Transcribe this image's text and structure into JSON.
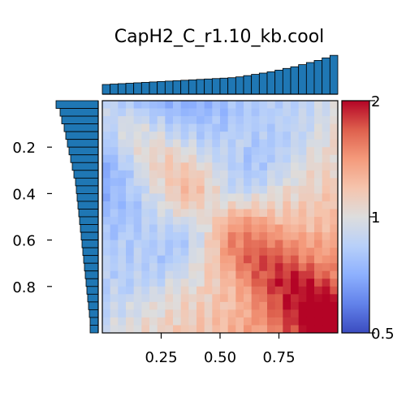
{
  "chart_data": {
    "type": "heatmap",
    "title": "CapH2_C_r1.10_kb.cool",
    "xlabel": "",
    "ylabel": "",
    "x_ticks": [
      "0.25",
      "0.50",
      "0.75"
    ],
    "x_tick_values": [
      0.25,
      0.5,
      0.75
    ],
    "y_ticks": [
      "0.2",
      "0.4",
      "0.6",
      "0.8"
    ],
    "y_tick_values": [
      0.2,
      0.4,
      0.6,
      0.8
    ],
    "xlim": [
      0.0,
      1.0
    ],
    "ylim": [
      0.0,
      1.0
    ],
    "grid_size": 30,
    "colorbar": {
      "colormap": "coolwarm",
      "scale": "log",
      "range": [
        0.5,
        2
      ],
      "tick_labels": [
        "2",
        "1",
        "0.5"
      ],
      "tick_values": [
        2,
        1,
        0.5
      ]
    },
    "colors": {
      "bar_fill": "#1f77b4",
      "bar_edge": "#000000",
      "cool_end": "#3b4cc0",
      "neutral": "#dddddd",
      "warm_end": "#b40426"
    },
    "top_marginal": {
      "type": "bar",
      "n_bins": 30,
      "values": [
        0.23,
        0.24,
        0.25,
        0.26,
        0.27,
        0.28,
        0.29,
        0.3,
        0.31,
        0.32,
        0.33,
        0.34,
        0.35,
        0.36,
        0.37,
        0.38,
        0.39,
        0.41,
        0.44,
        0.47,
        0.5,
        0.53,
        0.57,
        0.61,
        0.65,
        0.7,
        0.75,
        0.8,
        0.86,
        0.92
      ]
    },
    "left_marginal": {
      "type": "bar",
      "n_bins": 30,
      "values": [
        0.52,
        0.47,
        0.45,
        0.42,
        0.4,
        0.38,
        0.36,
        0.34,
        0.32,
        0.3,
        0.28,
        0.27,
        0.26,
        0.25,
        0.24,
        0.23,
        0.22,
        0.21,
        0.2,
        0.19,
        0.18,
        0.17,
        0.16,
        0.15,
        0.14,
        0.13,
        0.12,
        0.11,
        0.1,
        0.1
      ]
    }
  }
}
